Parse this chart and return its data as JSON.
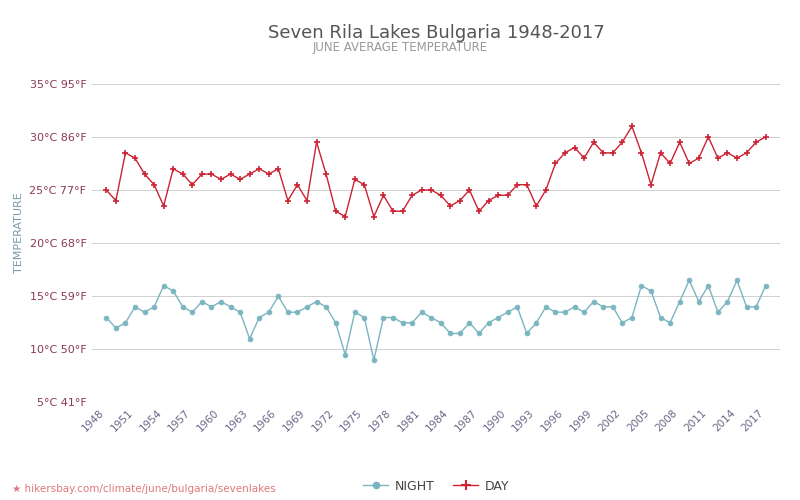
{
  "title": "Seven Rila Lakes Bulgaria 1948-2017",
  "subtitle": "JUNE AVERAGE TEMPERATURE",
  "ylabel": "TEMPERATURE",
  "footer": "hikersbay.com/climate/june/bulgaria/sevenlakes",
  "bg_color": "#ffffff",
  "grid_color": "#d0d0d0",
  "title_color": "#555555",
  "subtitle_color": "#999999",
  "ylabel_color": "#7a9aaa",
  "tick_color": "#8b3a52",
  "xtick_color": "#666688",
  "years": [
    1948,
    1949,
    1950,
    1951,
    1952,
    1953,
    1954,
    1955,
    1956,
    1957,
    1958,
    1959,
    1960,
    1961,
    1962,
    1963,
    1964,
    1965,
    1966,
    1967,
    1968,
    1969,
    1970,
    1971,
    1972,
    1973,
    1974,
    1975,
    1976,
    1977,
    1978,
    1979,
    1980,
    1981,
    1982,
    1983,
    1984,
    1985,
    1986,
    1987,
    1988,
    1989,
    1990,
    1991,
    1992,
    1993,
    1994,
    1995,
    1996,
    1997,
    1998,
    1999,
    2000,
    2001,
    2002,
    2003,
    2004,
    2005,
    2006,
    2007,
    2008,
    2009,
    2010,
    2011,
    2012,
    2013,
    2014,
    2015,
    2016,
    2017
  ],
  "day_temps": [
    25.0,
    24.0,
    28.5,
    28.0,
    26.5,
    25.5,
    23.5,
    27.0,
    26.5,
    25.5,
    26.5,
    26.5,
    26.0,
    26.5,
    26.0,
    26.5,
    27.0,
    26.5,
    27.0,
    24.0,
    25.5,
    24.0,
    29.5,
    26.5,
    23.0,
    22.5,
    26.0,
    25.5,
    22.5,
    24.5,
    23.0,
    23.0,
    24.5,
    25.0,
    25.0,
    24.5,
    23.5,
    24.0,
    25.0,
    23.0,
    24.0,
    24.5,
    24.5,
    25.5,
    25.5,
    23.5,
    25.0,
    27.5,
    28.5,
    29.0,
    28.0,
    29.5,
    28.5,
    28.5,
    29.5,
    31.0,
    28.5,
    25.5,
    28.5,
    27.5,
    29.5,
    27.5,
    28.0,
    30.0,
    28.0,
    28.5,
    28.0,
    28.5,
    29.5,
    30.0
  ],
  "night_temps": [
    13.0,
    12.0,
    12.5,
    14.0,
    13.5,
    14.0,
    16.0,
    15.5,
    14.0,
    13.5,
    14.5,
    14.0,
    14.5,
    14.0,
    13.5,
    11.0,
    13.0,
    13.5,
    15.0,
    13.5,
    13.5,
    14.0,
    14.5,
    14.0,
    12.5,
    9.5,
    13.5,
    13.0,
    9.0,
    13.0,
    13.0,
    12.5,
    12.5,
    13.5,
    13.0,
    12.5,
    11.5,
    11.5,
    12.5,
    11.5,
    12.5,
    13.0,
    13.5,
    14.0,
    11.5,
    12.5,
    14.0,
    13.5,
    13.5,
    14.0,
    13.5,
    14.5,
    14.0,
    14.0,
    12.5,
    13.0,
    16.0,
    15.5,
    13.0,
    12.5,
    14.5,
    16.5,
    14.5,
    16.0,
    13.5,
    14.5,
    16.5,
    14.0,
    14.0,
    16.0
  ],
  "day_color": "#cc2233",
  "night_color": "#7ab5c0",
  "ylim": [
    5,
    37
  ],
  "yticks_c": [
    5,
    10,
    15,
    20,
    25,
    30,
    35
  ],
  "yticks_f": [
    41,
    50,
    59,
    68,
    77,
    86,
    95
  ],
  "xtick_years": [
    1948,
    1951,
    1954,
    1957,
    1960,
    1963,
    1966,
    1969,
    1972,
    1975,
    1978,
    1981,
    1984,
    1987,
    1990,
    1993,
    1996,
    1999,
    2002,
    2005,
    2008,
    2011,
    2014,
    2017
  ]
}
